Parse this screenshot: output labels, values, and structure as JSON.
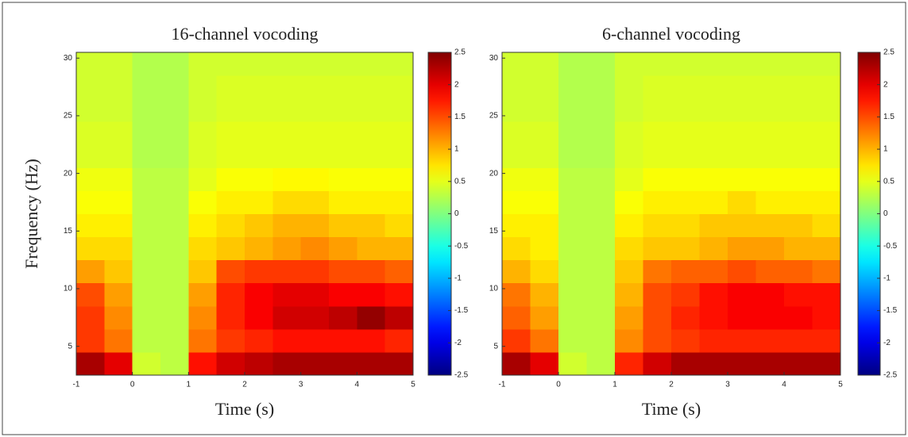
{
  "chart_data": [
    {
      "type": "heatmap",
      "title": "16-channel vocoding",
      "xlabel": "Time (s)",
      "ylabel": "Frequency (Hz)",
      "colormap": "jet",
      "x": [
        -0.75,
        -0.25,
        0.25,
        0.75,
        1.25,
        1.75,
        2.25,
        2.75,
        3.25,
        3.75,
        4.25,
        4.75
      ],
      "y": [
        3.5,
        5.5,
        7.5,
        9.5,
        11.5,
        13.5,
        15.5,
        17.5,
        19.5,
        21.5,
        23.5,
        25.5,
        27.5,
        29.5
      ],
      "values": [
        [
          2.3,
          2.0,
          0.4,
          0.3,
          1.8,
          2.1,
          2.2,
          2.3,
          2.3,
          2.3,
          2.3,
          2.3
        ],
        [
          1.6,
          1.3,
          0.3,
          0.3,
          1.3,
          1.6,
          1.7,
          1.8,
          1.8,
          1.8,
          1.8,
          1.7
        ],
        [
          1.6,
          1.2,
          0.3,
          0.3,
          1.2,
          1.7,
          1.9,
          2.1,
          2.1,
          2.2,
          2.4,
          2.2
        ],
        [
          1.5,
          1.1,
          0.3,
          0.3,
          1.1,
          1.7,
          1.9,
          2.0,
          2.0,
          1.9,
          1.9,
          1.8
        ],
        [
          1.1,
          0.9,
          0.3,
          0.3,
          0.9,
          1.5,
          1.6,
          1.6,
          1.6,
          1.5,
          1.5,
          1.4
        ],
        [
          0.8,
          0.8,
          0.3,
          0.3,
          0.8,
          0.9,
          1.0,
          1.1,
          1.2,
          1.1,
          1.0,
          1.0
        ],
        [
          0.7,
          0.7,
          0.3,
          0.3,
          0.7,
          0.8,
          0.9,
          1.0,
          1.0,
          0.9,
          0.9,
          0.8
        ],
        [
          0.6,
          0.6,
          0.3,
          0.3,
          0.6,
          0.7,
          0.7,
          0.8,
          0.8,
          0.7,
          0.7,
          0.7
        ],
        [
          0.55,
          0.55,
          0.3,
          0.3,
          0.5,
          0.6,
          0.6,
          0.65,
          0.65,
          0.6,
          0.6,
          0.6
        ],
        [
          0.45,
          0.45,
          0.25,
          0.25,
          0.45,
          0.5,
          0.5,
          0.5,
          0.5,
          0.5,
          0.5,
          0.5
        ],
        [
          0.45,
          0.45,
          0.25,
          0.25,
          0.45,
          0.5,
          0.5,
          0.5,
          0.5,
          0.5,
          0.5,
          0.5
        ],
        [
          0.4,
          0.4,
          0.25,
          0.25,
          0.4,
          0.45,
          0.45,
          0.45,
          0.45,
          0.45,
          0.45,
          0.45
        ],
        [
          0.4,
          0.4,
          0.25,
          0.25,
          0.4,
          0.45,
          0.45,
          0.45,
          0.45,
          0.45,
          0.45,
          0.45
        ],
        [
          0.4,
          0.4,
          0.25,
          0.25,
          0.4,
          0.4,
          0.4,
          0.4,
          0.4,
          0.4,
          0.4,
          0.4
        ]
      ],
      "xlim": [
        -1,
        5
      ],
      "ylim": [
        2.5,
        30.5
      ],
      "xticks": [
        -1,
        0,
        1,
        2,
        3,
        4,
        5
      ],
      "yticks": [
        5,
        10,
        15,
        20,
        25,
        30
      ],
      "clim": [
        -2.5,
        2.5
      ],
      "cticks": [
        -2.5,
        -2,
        -1.5,
        -1,
        -0.5,
        0,
        0.5,
        1,
        1.5,
        2,
        2.5
      ]
    },
    {
      "type": "heatmap",
      "title": "6-channel vocoding",
      "xlabel": "Time (s)",
      "colormap": "jet",
      "x": [
        -0.75,
        -0.25,
        0.25,
        0.75,
        1.25,
        1.75,
        2.25,
        2.75,
        3.25,
        3.75,
        4.25,
        4.75
      ],
      "y": [
        3.5,
        5.5,
        7.5,
        9.5,
        11.5,
        13.5,
        15.5,
        17.5,
        19.5,
        21.5,
        23.5,
        25.5,
        27.5,
        29.5
      ],
      "values": [
        [
          2.3,
          2.0,
          0.4,
          0.3,
          1.7,
          2.1,
          2.3,
          2.3,
          2.3,
          2.3,
          2.3,
          2.3
        ],
        [
          1.6,
          1.3,
          0.3,
          0.3,
          1.2,
          1.5,
          1.6,
          1.7,
          1.7,
          1.7,
          1.7,
          1.7
        ],
        [
          1.4,
          1.1,
          0.3,
          0.3,
          1.1,
          1.5,
          1.7,
          1.8,
          1.9,
          1.9,
          1.9,
          1.8
        ],
        [
          1.3,
          1.0,
          0.3,
          0.3,
          1.0,
          1.5,
          1.6,
          1.8,
          1.9,
          1.9,
          1.8,
          1.8
        ],
        [
          1.0,
          0.8,
          0.3,
          0.3,
          0.9,
          1.3,
          1.4,
          1.4,
          1.5,
          1.4,
          1.4,
          1.3
        ],
        [
          0.8,
          0.7,
          0.3,
          0.3,
          0.8,
          0.9,
          0.9,
          1.0,
          1.1,
          1.1,
          1.0,
          1.0
        ],
        [
          0.7,
          0.7,
          0.3,
          0.3,
          0.7,
          0.8,
          0.8,
          0.9,
          0.9,
          0.9,
          0.9,
          0.8
        ],
        [
          0.6,
          0.6,
          0.3,
          0.3,
          0.6,
          0.7,
          0.7,
          0.7,
          0.8,
          0.7,
          0.7,
          0.7
        ],
        [
          0.55,
          0.55,
          0.3,
          0.3,
          0.5,
          0.6,
          0.6,
          0.6,
          0.6,
          0.6,
          0.6,
          0.6
        ],
        [
          0.45,
          0.45,
          0.25,
          0.25,
          0.45,
          0.5,
          0.5,
          0.5,
          0.5,
          0.5,
          0.5,
          0.5
        ],
        [
          0.45,
          0.45,
          0.25,
          0.25,
          0.45,
          0.5,
          0.5,
          0.5,
          0.5,
          0.5,
          0.5,
          0.5
        ],
        [
          0.4,
          0.4,
          0.25,
          0.25,
          0.4,
          0.45,
          0.45,
          0.45,
          0.45,
          0.45,
          0.45,
          0.45
        ],
        [
          0.4,
          0.4,
          0.25,
          0.25,
          0.4,
          0.45,
          0.45,
          0.45,
          0.45,
          0.45,
          0.45,
          0.45
        ],
        [
          0.4,
          0.4,
          0.25,
          0.25,
          0.4,
          0.4,
          0.4,
          0.4,
          0.4,
          0.4,
          0.4,
          0.4
        ]
      ],
      "xlim": [
        -1,
        5
      ],
      "ylim": [
        2.5,
        30.5
      ],
      "xticks": [
        -1,
        0,
        1,
        2,
        3,
        4,
        5
      ],
      "yticks": [
        5,
        10,
        15,
        20,
        25,
        30
      ],
      "clim": [
        -2.5,
        2.5
      ],
      "cticks": [
        -2.5,
        -2,
        -1.5,
        -1,
        -0.5,
        0,
        0.5,
        1,
        1.5,
        2,
        2.5
      ]
    }
  ]
}
